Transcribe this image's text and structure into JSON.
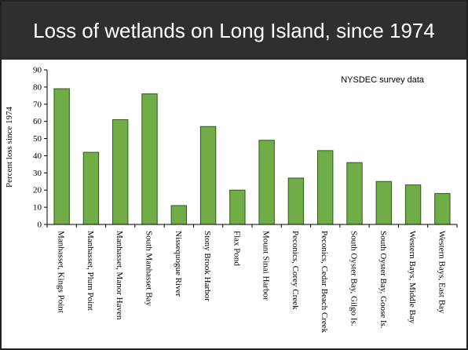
{
  "slide": {
    "title": "Loss of wetlands on Long Island, since 1974",
    "colors": {
      "title_bar": "#2f2f2f",
      "bar_fill": "#70ad47",
      "bar_stroke": "#2e5a17"
    }
  },
  "chart_data": {
    "type": "bar",
    "title": "",
    "annotation": "NYSDEC survey data",
    "ylabel": "Percent loss since 1974",
    "xlabel": "",
    "ylim": [
      0,
      90
    ],
    "yticks": [
      0,
      10,
      20,
      30,
      40,
      50,
      60,
      70,
      80,
      90
    ],
    "grid": false,
    "categories": [
      "Manhasset, Kings Point",
      "Manhasset, Plum Point",
      "Manhasset, Manor Haven",
      "South Manhasset Bay",
      "Nissequogue River",
      "Stony Brook Harbor",
      "Flax Pond",
      "Mount Sinai Harbor",
      "Peconics, Corey Creek",
      "Peconics, Cedar Beach Creek",
      "South Oyster Bay, Gilgo Is.",
      "South Oyster Bay, Goose Is.",
      "Western Bays, Middle Bay",
      "Western Bays, East Bay"
    ],
    "values": [
      79,
      42,
      61,
      76,
      11,
      57,
      20,
      49,
      27,
      43,
      36,
      25,
      23,
      18
    ]
  }
}
